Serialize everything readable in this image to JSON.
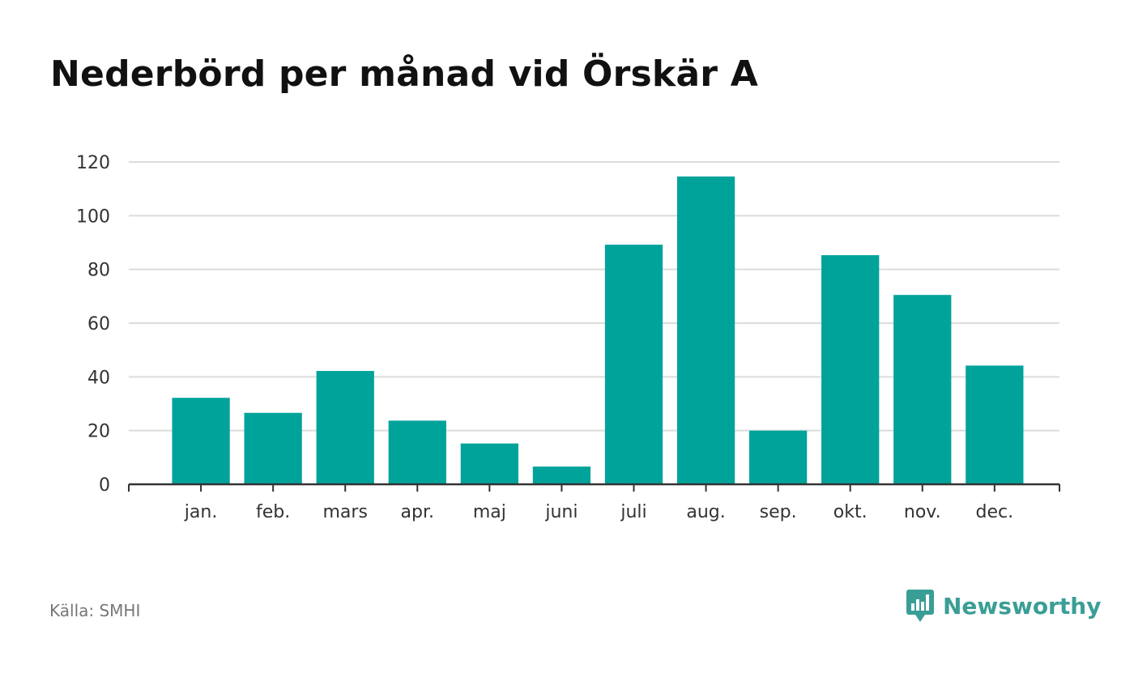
{
  "chart_data": {
    "type": "bar",
    "title": "Nederbörd per månad vid Örskär A",
    "xlabel": "",
    "ylabel": "",
    "categories": [
      "jan.",
      "feb.",
      "mars",
      "apr.",
      "maj",
      "juni",
      "juli",
      "aug.",
      "sep.",
      "okt.",
      "nov.",
      "dec."
    ],
    "values": [
      32.2,
      26.6,
      42.2,
      23.7,
      15.2,
      6.6,
      89.2,
      114.6,
      20.0,
      85.3,
      70.5,
      44.2
    ],
    "ylim": [
      0,
      120
    ],
    "yticks": [
      0,
      20,
      40,
      60,
      80,
      100,
      120
    ],
    "grid": true,
    "bar_color": "#00a39a"
  },
  "footer": {
    "source": "Källa: SMHI",
    "brand": "Newsworthy",
    "brand_color": "#3a9e96",
    "brand_icon": "newsworthy-logo-icon"
  }
}
